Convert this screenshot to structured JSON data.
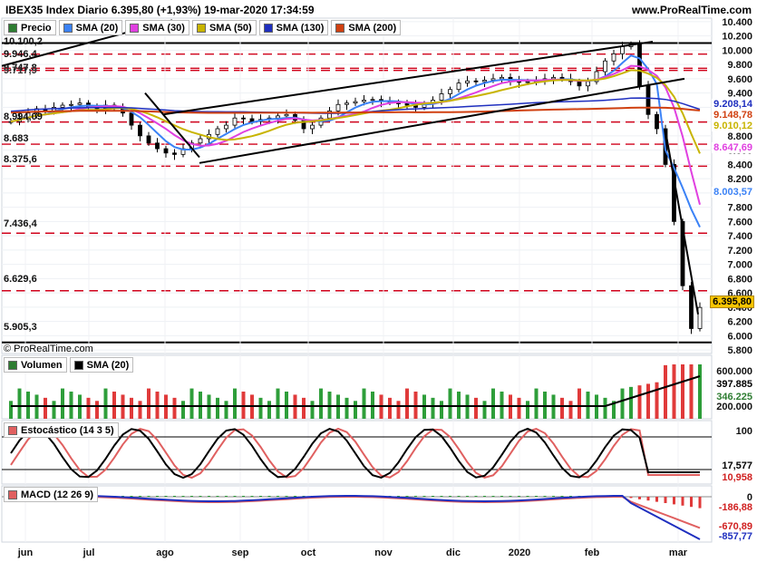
{
  "header": {
    "title": "IBEX35 Index Diario 6.395,80 (+1,93%) 19-mar-2020 17:34:59",
    "site": "www.ProRealTime.com",
    "copyright": "© ProRealTime.com"
  },
  "price_panel": {
    "legend": [
      {
        "label": "Precio",
        "color": "#2e7d32"
      },
      {
        "label": "SMA (20)",
        "color": "#3b82f6"
      },
      {
        "label": "SMA (30)",
        "color": "#e040e0"
      },
      {
        "label": "SMA (50)",
        "color": "#c8b400"
      },
      {
        "label": "SMA (130)",
        "color": "#1f2fbf"
      },
      {
        "label": "SMA (200)",
        "color": "#d04010"
      }
    ],
    "level_labels": [
      "10.100,2",
      "9.946,4",
      "9.747,8",
      "9.717,9",
      "8.994,09",
      "8.683",
      "8.375,6",
      "7.436,4",
      "6.629,6",
      "5.905,3"
    ],
    "tags": [
      {
        "text": "9.208,14",
        "color": "#1f2fbf"
      },
      {
        "text": "9.148,78",
        "color": "#d04010"
      },
      {
        "text": "9.010,12",
        "color": "#c8b400"
      },
      {
        "text": "8.647,69",
        "color": "#e040e0"
      },
      {
        "text": "8.003,57",
        "color": "#3b82f6"
      },
      {
        "text": "6.395,80",
        "color": "#000000",
        "bg": "#f5c400"
      }
    ]
  },
  "volume_panel": {
    "legend": [
      {
        "label": "Volumen",
        "color": "#2e7d32"
      },
      {
        "label": "SMA (20)",
        "color": "#000000"
      }
    ],
    "tags": [
      {
        "text": "397.885",
        "color": "#000000"
      },
      {
        "text": "346.225",
        "color": "#2e7d32"
      }
    ]
  },
  "stoch_panel": {
    "legend": [
      {
        "label": "Estocástico (14 3 5)",
        "color": "#e06060"
      }
    ],
    "tags": [
      {
        "text": "17,577",
        "color": "#000000"
      },
      {
        "text": "10,958",
        "color": "#d02020"
      }
    ]
  },
  "macd_panel": {
    "legend": [
      {
        "label": "MACD (12 26 9)",
        "color": "#e06060"
      }
    ],
    "tags": [
      {
        "text": "-186,88",
        "color": "#d02020"
      },
      {
        "text": "-670,89",
        "color": "#d02020"
      },
      {
        "text": "-857,77",
        "color": "#1f2fbf"
      }
    ]
  },
  "chart_data": {
    "type": "candlestick",
    "title": "IBEX35 Index Diario 6.395,80 (+1,93%) 19-mar-2020 17:34:59",
    "x_ticks": [
      "jun",
      "jul",
      "ago",
      "sep",
      "oct",
      "nov",
      "dic",
      "2020",
      "feb",
      "mar"
    ],
    "y_ticks": [
      "10.400",
      "10.200",
      "10.000",
      "9.800",
      "9.600",
      "9.400",
      "9.200",
      "9.000",
      "8.800",
      "8.600",
      "8.400",
      "8.200",
      "8.000",
      "7.800",
      "7.600",
      "7.400",
      "7.200",
      "7.000",
      "6.800",
      "6.600",
      "6.400",
      "6.200",
      "6.000",
      "5.800"
    ],
    "ylim": [
      5750,
      10450
    ],
    "horizontal_levels": [
      10100.2,
      9946.4,
      9747.8,
      9717.9,
      8994.09,
      8683,
      8375.6,
      7436.4,
      6629.6,
      5905.3
    ],
    "close_series": [
      9000,
      9050,
      9120,
      9180,
      9150,
      9200,
      9230,
      9240,
      9260,
      9200,
      9180,
      9230,
      9200,
      9120,
      8950,
      8800,
      8700,
      8620,
      8560,
      8540,
      8620,
      8700,
      8760,
      8820,
      8900,
      8950,
      9050,
      9040,
      9000,
      9030,
      9050,
      9080,
      9100,
      9020,
      8900,
      8950,
      9050,
      9150,
      9240,
      9260,
      9280,
      9300,
      9310,
      9280,
      9270,
      9250,
      9230,
      9200,
      9250,
      9300,
      9390,
      9450,
      9540,
      9570,
      9560,
      9580,
      9600,
      9620,
      9570,
      9550,
      9560,
      9580,
      9600,
      9620,
      9600,
      9560,
      9500,
      9560,
      9700,
      9850,
      9950,
      10050,
      10083,
      9500,
      9100,
      8900,
      8400,
      7600,
      6700,
      6100,
      6395.8
    ],
    "sma_20_last": 8003.57,
    "sma_30_last": 8647.69,
    "sma_50_last": 9010.12,
    "sma_130_last": 9208.14,
    "sma_200_last": 9148.78,
    "volume": {
      "y_ticks": [
        "600.000",
        "200.000"
      ],
      "sma_20_last": 397885,
      "last": 346225
    },
    "stochastic": {
      "y_ticks": [
        "100",
        "0"
      ],
      "k_last": 17.577,
      "d_last": 10.958
    },
    "macd": {
      "y_ticks": [
        "0"
      ],
      "hist_last": -186.88,
      "signal_last": -670.89,
      "macd_last": -857.77
    }
  }
}
